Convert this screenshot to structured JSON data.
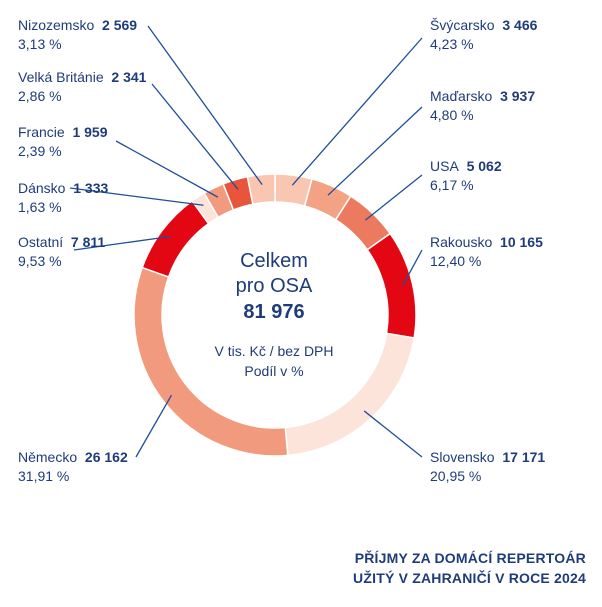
{
  "chart_data": {
    "type": "pie",
    "center": {
      "line1": "Celkem",
      "line2": "pro OSA",
      "total": "81 976",
      "unit": "V tis. Kč / bez DPH",
      "share": "Podíl v %"
    },
    "caption": [
      "PŘÍJMY ZA DOMÁCÍ REPERTOÁR",
      "UŽITÝ V ZAHRANIČÍ V ROCE 2024"
    ],
    "slices": [
      {
        "name": "Švýcarsko",
        "value": 3466,
        "value_label": "3 466",
        "pct": "4,23 %",
        "color": "#f9c7b1"
      },
      {
        "name": "Maďarsko",
        "value": 3937,
        "value_label": "3 937",
        "pct": "4,80 %",
        "color": "#f3a283"
      },
      {
        "name": "USA",
        "value": 5062,
        "value_label": "5 062",
        "pct": "6,17 %",
        "color": "#ec7a5f"
      },
      {
        "name": "Rakousko",
        "value": 10165,
        "value_label": "10 165",
        "pct": "12,40 %",
        "color": "#e30613"
      },
      {
        "name": "Slovensko",
        "value": 17171,
        "value_label": "17 171",
        "pct": "20,95 %",
        "color": "#fde4da"
      },
      {
        "name": "Německo",
        "value": 26162,
        "value_label": "26 162",
        "pct": "31,91 %",
        "color": "#f29a7d"
      },
      {
        "name": "Ostatní",
        "value": 7811,
        "value_label": "7 811",
        "pct": "9,53 %",
        "color": "#e30613"
      },
      {
        "name": "Dánsko",
        "value": 1333,
        "value_label": "1 333",
        "pct": "1,63 %",
        "color": "#fde4da"
      },
      {
        "name": "Francie",
        "value": 1959,
        "value_label": "1 959",
        "pct": "2,39 %",
        "color": "#f29a7d"
      },
      {
        "name": "Velká Británie",
        "value": 2341,
        "value_label": "2 341",
        "pct": "2,86 %",
        "color": "#e8553c"
      },
      {
        "name": "Nizozemsko",
        "value": 2569,
        "value_label": "2 569",
        "pct": "3,13 %",
        "color": "#f9c7b1"
      }
    ]
  }
}
